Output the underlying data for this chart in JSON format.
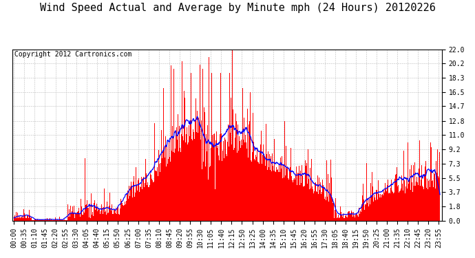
{
  "title": "Wind Speed Actual and Average by Minute mph (24 Hours) 20120226",
  "copyright_text": "Copyright 2012 Cartronics.com",
  "yticks": [
    0.0,
    1.8,
    3.7,
    5.5,
    7.3,
    9.2,
    11.0,
    12.8,
    14.7,
    16.5,
    18.3,
    20.2,
    22.0
  ],
  "ylim": [
    0.0,
    22.0
  ],
  "xlim": [
    -5,
    1445
  ],
  "n_minutes": 1440,
  "bar_color": "#FF0000",
  "line_color": "#0000FF",
  "background_color": "#FFFFFF",
  "grid_color": "#BBBBBB",
  "title_fontsize": 11,
  "copyright_fontsize": 7,
  "tick_fontsize": 7,
  "xtick_step": 35,
  "avg_window": 30,
  "figsize": [
    6.9,
    3.75
  ],
  "dpi": 100
}
